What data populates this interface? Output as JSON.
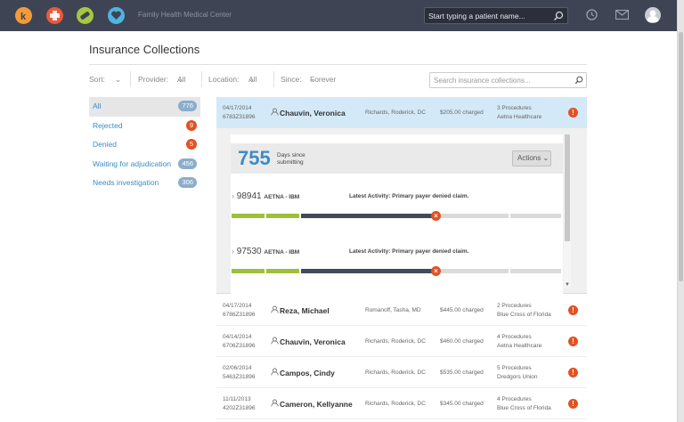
{
  "app": {
    "title": "Family Health Medical Center",
    "patient_search_placeholder": "Start typing a patient name...",
    "icons": [
      "k-logo-icon",
      "medical-cross-icon",
      "bandage-icon",
      "heart-icon",
      "history-icon",
      "mail-icon",
      "user-avatar-icon"
    ],
    "icon_colors": [
      "#f29b38",
      "#e85a3c",
      "#a5c840",
      "#4fb3e0"
    ]
  },
  "page": {
    "title": "Insurance Collections",
    "filters": {
      "sort_label": "Sort:",
      "sort_value": "",
      "provider_label": "Provider:",
      "provider_value": "All",
      "location_label": "Location:",
      "location_value": "All",
      "since_label": "Since:",
      "since_value": "Forever"
    },
    "search_placeholder": "Search insurance collections..."
  },
  "sidebar": {
    "items": [
      {
        "label": "All",
        "count": "776",
        "badge": "blue",
        "active": true
      },
      {
        "label": "Rejected",
        "count": "9",
        "badge": "red"
      },
      {
        "label": "Denied",
        "count": "5",
        "badge": "red"
      },
      {
        "label": "Waiting for adjudication",
        "count": "456",
        "badge": "blue"
      },
      {
        "label": "Needs investigation",
        "count": "306",
        "badge": "blue"
      }
    ]
  },
  "selected_row": {
    "date": "04/17/2014",
    "account": "6783Z31896",
    "name": "Chauvin, Veronica",
    "provider": "Richards, Roderick, DC",
    "charged": "$205.00 charged",
    "procedures": "3 Procedures",
    "payer": "Aetna Healthcare",
    "alert": "!"
  },
  "detail": {
    "days": "755",
    "days_label": "Days since submitting",
    "actions_label": "Actions",
    "claims": [
      {
        "number": "98941",
        "payer": "AETNA - IBM",
        "activity_label": "Latest Activity:",
        "activity": "Primary payer denied claim."
      },
      {
        "number": "97530",
        "payer": "AETNA - IBM",
        "activity_label": "Latest Activity:",
        "activity": "Primary payer denied claim."
      }
    ],
    "status_colors": {
      "done": "#9dc03a",
      "current": "#434a5a",
      "pending": "#dadada",
      "error": "#e25123"
    }
  },
  "rows": [
    {
      "date": "04/17/2014",
      "account": "6786Z31896",
      "name": "Reza, Michael",
      "provider": "Romanoff, Tasha, MD",
      "charged": "$445.00 charged",
      "procedures": "2 Procedures",
      "payer": "Blue Cross of Florida",
      "alert": "!"
    },
    {
      "date": "04/14/2014",
      "account": "6706Z31896",
      "name": "Chauvin, Veronica",
      "provider": "Richards, Roderick, DC",
      "charged": "$460.00 charged",
      "procedures": "4 Procedures",
      "payer": "Aetna Healthcare",
      "alert": "!"
    },
    {
      "date": "02/06/2014",
      "account": "5463Z31896",
      "name": "Campos, Cindy",
      "provider": "Richards, Roderick, DC",
      "charged": "$535.00 charged",
      "procedures": "5 Procedures",
      "payer": "Dredgors Union",
      "alert": "!"
    },
    {
      "date": "11/11/2013",
      "account": "4202Z31896",
      "name": "Cameron, Kellyanne",
      "provider": "Richards, Roderick, DC",
      "charged": "$345.00 charged",
      "procedures": "4 Procedures",
      "payer": "Blue Cross of Florida",
      "alert": "!"
    }
  ]
}
